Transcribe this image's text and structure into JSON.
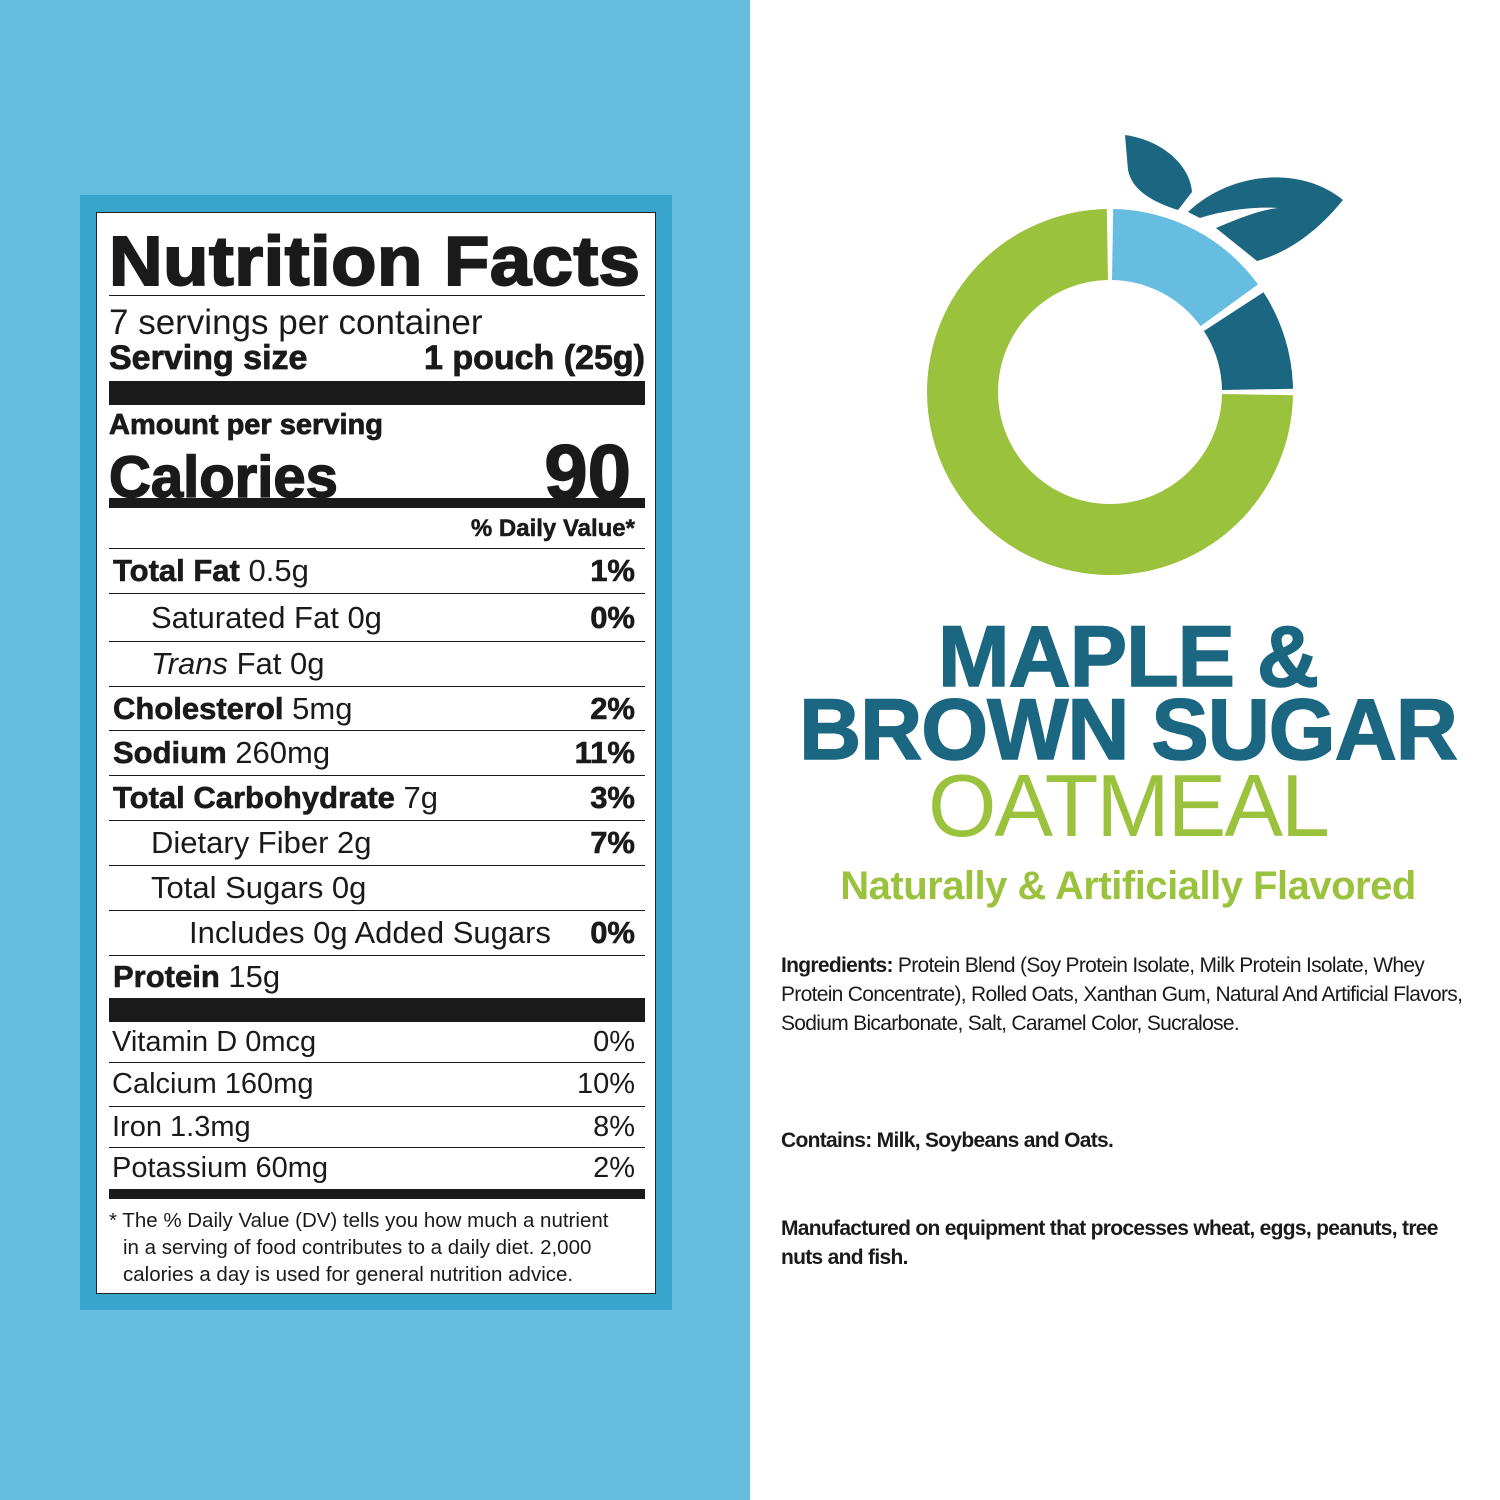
{
  "colors": {
    "left_bg": "#66bde0",
    "frame": "#37a5cc",
    "brand_dark": "#1b6680",
    "brand_green": "#9ac23c",
    "brand_light": "#66bde0"
  },
  "label": {
    "title": "Nutrition Facts",
    "servings": "7 servings per container",
    "serving_size_label": "Serving size",
    "serving_size_value": "1 pouch (25g)",
    "amount_per_serving": "Amount per serving",
    "calories_label": "Calories",
    "calories_value": "90",
    "dv_header": "% Daily Value*",
    "nutrients": [
      {
        "bold": "Total Fat",
        "amount": " 0.5g",
        "dv": "1%"
      },
      {
        "name": "Saturated Fat 0g",
        "dv": "0%"
      },
      {
        "italic": "Trans",
        "name": " Fat 0g",
        "dv": ""
      },
      {
        "bold": "Cholesterol",
        "amount": " 5mg",
        "dv": "2%"
      },
      {
        "bold": "Sodium",
        "amount": " 260mg",
        "dv": "11%"
      },
      {
        "bold": "Total Carbohydrate",
        "amount": " 7g",
        "dv": "3%"
      },
      {
        "name": "Dietary Fiber 2g",
        "dv": "7%"
      },
      {
        "name": "Total Sugars 0g",
        "dv": ""
      },
      {
        "name": "Includes 0g Added Sugars",
        "dv": "0%"
      },
      {
        "bold": "Protein",
        "amount": " 15g",
        "dv": ""
      }
    ],
    "vitamins": [
      {
        "name": "Vitamin D 0mcg",
        "dv": "0%"
      },
      {
        "name": "Calcium 160mg",
        "dv": "10%"
      },
      {
        "name": "Iron 1.3mg",
        "dv": "8%"
      },
      {
        "name": "Potassium 60mg",
        "dv": "2%"
      }
    ],
    "footnote": [
      "* The % Daily Value (DV) tells you how much a nutrient",
      "in a serving of food contributes to a daily diet. 2,000",
      "calories a day is used for general nutrition advice."
    ]
  },
  "product": {
    "line1": "MAPLE &",
    "line2": "BROWN SUGAR",
    "line3": "OATMEAL",
    "flavor": "Naturally & Artificially Flavored",
    "logo_icon": "donut-with-leaves-logo",
    "ingredients_label": "Ingredients:",
    "ingredients": " Protein Blend (Soy Protein Isolate, Milk Protein Isolate, Whey Protein Concentrate), Rolled Oats, Xanthan Gum, Natural And Artificial Flavors, Sodium Bicarbonate, Salt, Caramel Color, Sucralose.",
    "contains": "Contains: Milk, Soybeans and Oats.",
    "manufactured": "Manufactured on equipment that processes wheat, eggs, peanuts, tree nuts and fish."
  }
}
